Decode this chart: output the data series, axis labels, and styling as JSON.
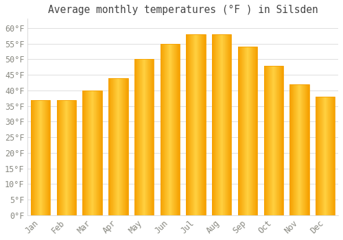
{
  "title": "Average monthly temperatures (°F ) in Silsden",
  "months": [
    "Jan",
    "Feb",
    "Mar",
    "Apr",
    "May",
    "Jun",
    "Jul",
    "Aug",
    "Sep",
    "Oct",
    "Nov",
    "Dec"
  ],
  "values": [
    37,
    37,
    40,
    44,
    50,
    55,
    58,
    58,
    54,
    48,
    42,
    38
  ],
  "bar_color_center": "#FFD040",
  "bar_color_edge": "#F5A000",
  "background_color": "#FFFFFF",
  "grid_color": "#DDDDDD",
  "text_color": "#888880",
  "ylim": [
    0,
    63
  ],
  "ytick_values": [
    0,
    5,
    10,
    15,
    20,
    25,
    30,
    35,
    40,
    45,
    50,
    55,
    60
  ],
  "ylabel_suffix": "°F",
  "title_fontsize": 10.5,
  "tick_fontsize": 8.5
}
